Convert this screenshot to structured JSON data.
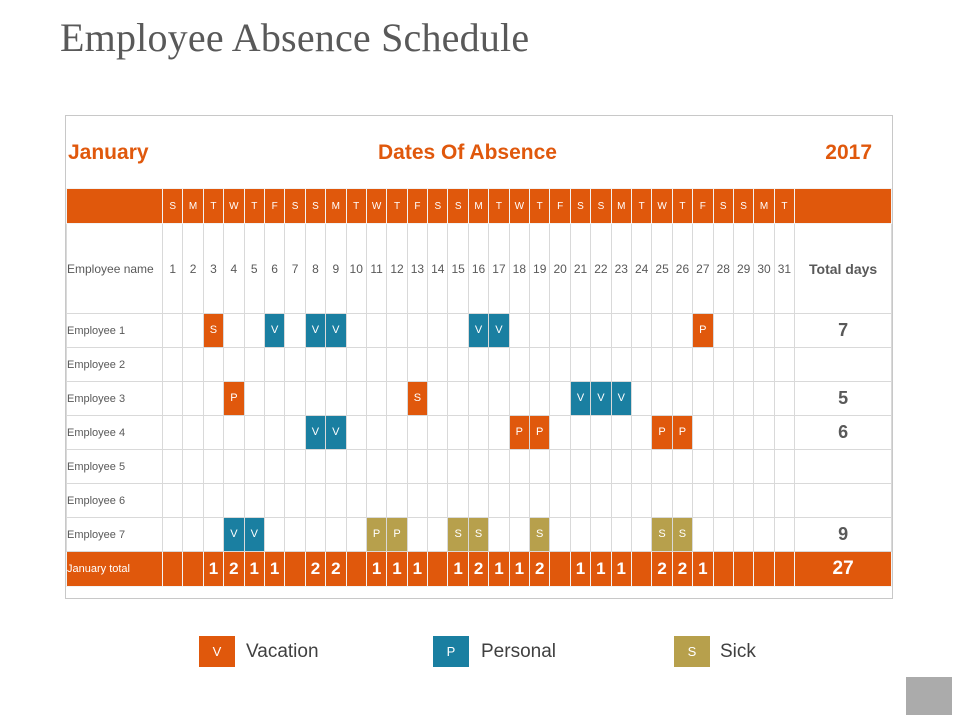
{
  "title": "Employee Absence Schedule",
  "header": {
    "month": "January",
    "heading": "Dates Of Absence",
    "year": "2017"
  },
  "weekdays": [
    "S",
    "M",
    "T",
    "W",
    "T",
    "F",
    "S",
    "S",
    "M",
    "T",
    "W",
    "T",
    "F",
    "S",
    "S",
    "M",
    "T",
    "W",
    "T",
    "F",
    "S",
    "S",
    "M",
    "T",
    "W",
    "T",
    "F",
    "S",
    "S",
    "M",
    "T"
  ],
  "days": [
    "1",
    "2",
    "3",
    "4",
    "5",
    "6",
    "7",
    "8",
    "9",
    "10",
    "11",
    "12",
    "13",
    "14",
    "15",
    "16",
    "17",
    "18",
    "19",
    "20",
    "21",
    "22",
    "23",
    "24",
    "25",
    "26",
    "27",
    "28",
    "29",
    "30",
    "31"
  ],
  "labels": {
    "employee_name": "Employee name",
    "total_days": "Total days",
    "month_total": "January total"
  },
  "colors": {
    "orange": "#e0580c",
    "blue": "#1a7fa1",
    "olive": "#b7a04c"
  },
  "employees": [
    {
      "name": "Employee 1",
      "marks": {
        "3": "S",
        "6": "V",
        "8": "V",
        "9": "V",
        "16": "V",
        "17": "V",
        "27": "P"
      },
      "total": "7"
    },
    {
      "name": "Employee 2",
      "marks": {},
      "total": ""
    },
    {
      "name": "Employee 3",
      "marks": {
        "4": "P",
        "13": "S",
        "21": "V",
        "22": "V",
        "23": "V"
      },
      "total": "5"
    },
    {
      "name": "Employee 4",
      "marks": {
        "8": "V",
        "9": "V",
        "18": "P",
        "19": "P",
        "25": "P",
        "26": "P"
      },
      "total": "6"
    },
    {
      "name": "Employee 5",
      "marks": {},
      "total": ""
    },
    {
      "name": "Employee 6",
      "marks": {},
      "total": ""
    },
    {
      "name": "Employee 7",
      "marks": {
        "4": "V",
        "5": "V",
        "11": "P",
        "12": "P",
        "15": "S",
        "16": "S",
        "19": "S",
        "25": "S",
        "26": "S"
      },
      "total": "9"
    }
  ],
  "day_totals": [
    "",
    "",
    "1",
    "2",
    "1",
    "1",
    "",
    "2",
    "2",
    "",
    "1",
    "1",
    "1",
    "",
    "1",
    "2",
    "1",
    "1",
    "2",
    "",
    "1",
    "1",
    "1",
    "",
    "2",
    "2",
    "1",
    "",
    "",
    "",
    ""
  ],
  "grand_total": "27",
  "legend": [
    {
      "code": "V",
      "label": "Vacation",
      "color": "#e0580c"
    },
    {
      "code": "P",
      "label": "Personal",
      "color": "#1a7fa1"
    },
    {
      "code": "S",
      "label": "Sick",
      "color": "#b7a04c"
    }
  ]
}
